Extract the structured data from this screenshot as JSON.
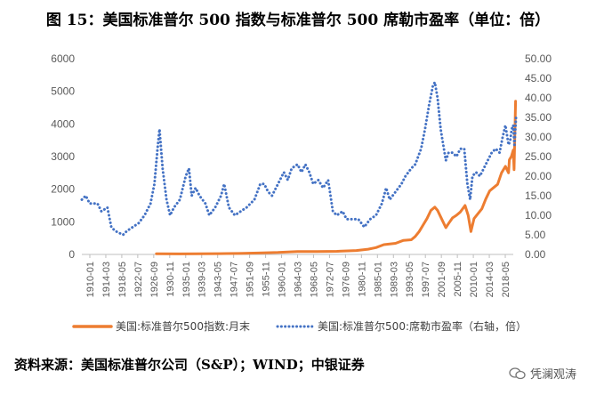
{
  "title": "图 15：美国标准普尔 500 指数与标准普尔 500 席勒市盈率（单位：倍）",
  "source": "资料来源：美国标准普尔公司（S&P）；WIND；中银证券",
  "watermark": "凭澜观涛",
  "colors": {
    "sp500": "#ED7D31",
    "pe": "#4472C4",
    "axis": "#bfbfbf",
    "tick": "#595959"
  },
  "chart_data": {
    "type": "line",
    "x_ticks": [
      "1910-01",
      "1914-03",
      "1918-05",
      "1922-07",
      "1926-09",
      "1930-11",
      "1935-01",
      "1939-03",
      "1943-05",
      "1947-07",
      "1951-09",
      "1955-11",
      "1960-01",
      "1964-03",
      "1968-05",
      "1972-07",
      "1976-09",
      "1980-11",
      "1985-01",
      "1989-03",
      "1993-05",
      "1997-07",
      "2001-09",
      "2005-11",
      "2010-01",
      "2014-03",
      "2018-05"
    ],
    "x_range": [
      1910.0,
      2020.0
    ],
    "left_axis": {
      "range": [
        0,
        6000
      ],
      "ticks": [
        "0",
        "1000",
        "2000",
        "3000",
        "4000",
        "5000",
        "6000"
      ]
    },
    "right_axis": {
      "range": [
        0,
        50
      ],
      "ticks": [
        "0.00",
        "5.00",
        "10.00",
        "15.00",
        "20.00",
        "25.00",
        "30.00",
        "35.00",
        "40.00",
        "45.00",
        "50.00"
      ]
    },
    "legend_position": "bottom",
    "series": [
      {
        "name": "美国:标准普尔500指数:月末",
        "axis": "left",
        "style": "solid",
        "x": [
          1929.0,
          1935,
          1940,
          1945,
          1950,
          1955,
          1960,
          1965,
          1970,
          1975,
          1980,
          1983,
          1985,
          1987,
          1990,
          1992,
          1994,
          1995,
          1996,
          1997,
          1998,
          1999,
          2000.0,
          2000.7,
          2001.5,
          2002.8,
          2003.5,
          2004.5,
          2005.5,
          2006.5,
          2007.7,
          2008.5,
          2009.2,
          2010.0,
          2011.0,
          2012.0,
          2013.0,
          2014.0,
          2015.0,
          2016.0,
          2017.0,
          2018.0,
          2018.8,
          2019.0,
          2019.5,
          2020.0,
          2020.2,
          2020.6
        ],
        "y": [
          20,
          15,
          20,
          25,
          30,
          45,
          60,
          90,
          90,
          95,
          120,
          160,
          210,
          300,
          340,
          430,
          450,
          550,
          700,
          900,
          1100,
          1350,
          1450,
          1350,
          1150,
          820,
          950,
          1120,
          1200,
          1300,
          1500,
          1200,
          700,
          1100,
          1250,
          1400,
          1700,
          1950,
          2050,
          2150,
          2500,
          2700,
          2500,
          2900,
          3000,
          3200,
          2600,
          4700
        ]
      },
      {
        "name": "美国:标准普尔500:席勒市盈率（右轴，倍）",
        "axis": "right",
        "style": "dotted",
        "x": [
          1910,
          1911,
          1912,
          1914,
          1915,
          1916.5,
          1917.5,
          1918.5,
          1920.5,
          1921.5,
          1923,
          1924.5,
          1926,
          1927.5,
          1928.5,
          1929.3,
          1929.8,
          1930.6,
          1931.6,
          1932.5,
          1933.5,
          1935,
          1936.5,
          1937.3,
          1938,
          1939,
          1940,
          1941.5,
          1942.5,
          1944,
          1945.5,
          1946.3,
          1947.5,
          1949,
          1950.5,
          1952,
          1954,
          1955.5,
          1956.5,
          1957.5,
          1958.5,
          1960,
          1961.5,
          1962.5,
          1963.5,
          1965,
          1966,
          1967,
          1968,
          1969,
          1970.3,
          1971.5,
          1972.8,
          1974,
          1975,
          1976.5,
          1977.5,
          1979,
          1980.5,
          1982,
          1983.5,
          1985,
          1986.5,
          1987.6,
          1988.5,
          1990,
          1991.5,
          1992.5,
          1994,
          1995,
          1996.5,
          1997.5,
          1998.5,
          1999.5,
          2000.0,
          2000.7,
          2001.5,
          2002.8,
          2003.5,
          2004.5,
          2005.5,
          2006.5,
          2007.5,
          2008.3,
          2009.0,
          2009.6,
          2010.5,
          2011.5,
          2012.5,
          2013.5,
          2014.5,
          2015.5,
          2016.5,
          2017.3,
          2018.0,
          2018.8,
          2019.2,
          2019.6,
          2020.0,
          2020.3,
          2020.7
        ],
        "y": [
          14,
          15,
          13,
          13,
          11,
          12,
          7,
          6,
          5,
          6,
          7,
          8,
          10,
          13,
          18,
          27,
          32,
          22,
          14,
          10,
          12,
          14,
          20,
          22,
          15,
          17,
          15,
          13,
          10,
          12,
          15,
          18,
          12,
          10,
          11,
          12,
          14,
          18,
          18,
          16,
          15,
          18,
          21,
          19,
          22,
          23,
          21,
          23,
          21,
          18,
          19,
          17,
          19,
          11,
          10,
          11,
          9,
          9,
          9,
          7,
          9,
          10,
          13,
          17,
          14,
          16,
          18,
          20,
          22,
          23,
          27,
          32,
          38,
          43,
          44,
          40,
          32,
          24,
          26,
          26,
          25,
          27,
          27,
          18,
          14,
          20,
          21,
          20,
          22,
          24,
          26,
          27,
          26,
          30,
          33,
          28,
          29,
          32,
          33,
          28,
          35
        ]
      }
    ]
  }
}
